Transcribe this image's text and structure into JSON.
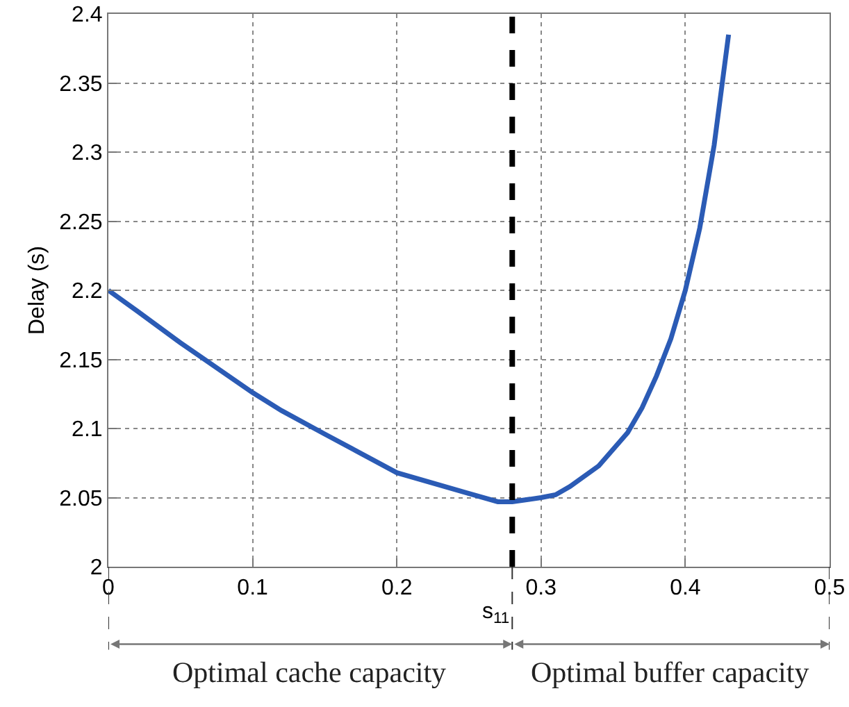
{
  "chart_data": {
    "type": "line",
    "xlabel": "s$_{11}$",
    "ylabel": "Delay (s)",
    "x": [
      0,
      0.02,
      0.05,
      0.1,
      0.12,
      0.15,
      0.2,
      0.25,
      0.27,
      0.28,
      0.3,
      0.31,
      0.32,
      0.34,
      0.36,
      0.37,
      0.38,
      0.39,
      0.4,
      0.41,
      0.42,
      0.43
    ],
    "series": [
      {
        "color": "#2b5bb5",
        "values": [
          2.2,
          2.185,
          2.162,
          2.126,
          2.113,
          2.096,
          2.068,
          2.053,
          2.047,
          2.047,
          2.05,
          2.052,
          2.058,
          2.073,
          2.097,
          2.115,
          2.138,
          2.165,
          2.2,
          2.245,
          2.305,
          2.385
        ]
      }
    ],
    "xlim": [
      0,
      0.5
    ],
    "xticks": [
      0,
      0.1,
      0.2,
      0.3,
      0.4,
      0.5
    ],
    "ylim": [
      2,
      2.4
    ],
    "yticks": [
      2,
      2.05,
      2.1,
      2.15,
      2.2,
      2.25,
      2.3,
      2.35,
      2.4
    ],
    "grid": true,
    "line_style": "solid",
    "marker": "none",
    "ref_lines": [
      {
        "axis": "x",
        "value": 0.28,
        "color": "#000000",
        "line_style": "dashed"
      }
    ],
    "annotations": [
      "Optimal cache capacity",
      "Optimal buffer capacity"
    ]
  }
}
